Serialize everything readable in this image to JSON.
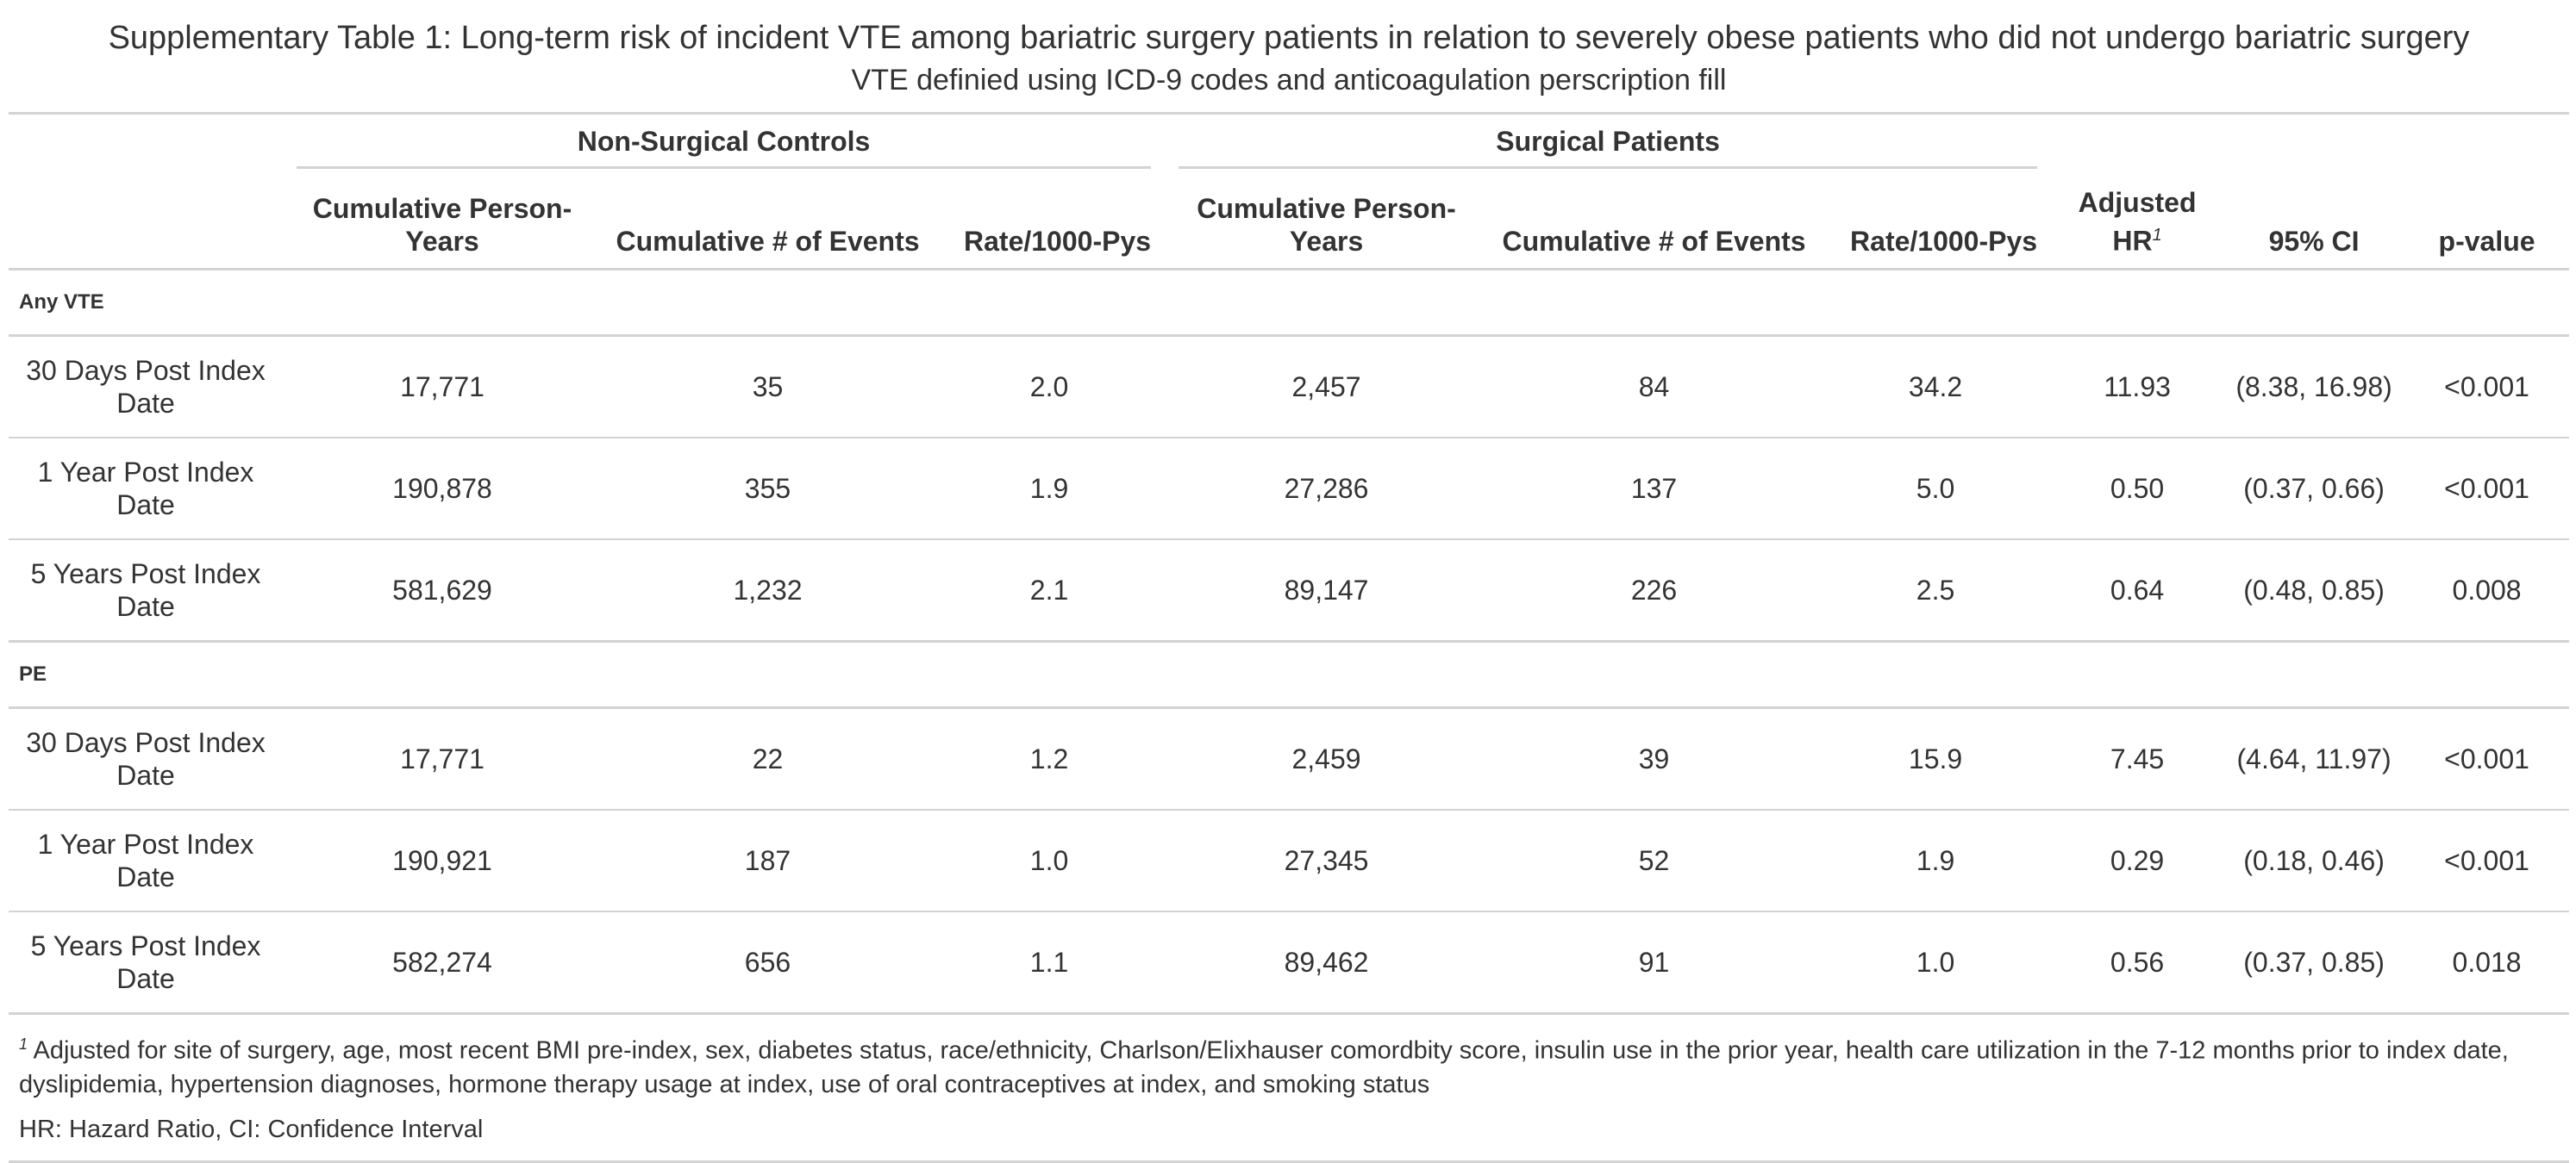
{
  "title": "Supplementary Table 1: Long-term risk of incident VTE among bariatric surgery patients in relation to severely obese patients who did not undergo bariatric surgery",
  "subtitle": "VTE definied using ICD-9 codes and anticoagulation perscription fill",
  "spanners": {
    "non_surgical": "Non-Surgical Controls",
    "surgical": "Surgical Patients"
  },
  "columns": {
    "person_years": "Cumulative Person-Years",
    "events": "Cumulative # of Events",
    "rate": "Rate/1000-Pys",
    "person_years_s": "Cumulative Person-Years",
    "events_s": "Cumulative # of Events",
    "rate_s": "Rate/1000-Pys",
    "adjusted_hr": "Adjusted HR",
    "adjusted_hr_marker": "1",
    "ci": "95% CI",
    "p_value": "p-value"
  },
  "groups": [
    {
      "label": "Any VTE",
      "rows": [
        {
          "label": "30 Days Post Index Date",
          "py_ns": "17,771",
          "ev_ns": "35",
          "rate_ns": "2.0",
          "py_s": "2,457",
          "ev_s": "84",
          "rate_s": "34.2",
          "hr": "11.93",
          "ci": "(8.38, 16.98)",
          "p": "<0.001"
        },
        {
          "label": "1 Year Post Index Date",
          "py_ns": "190,878",
          "ev_ns": "355",
          "rate_ns": "1.9",
          "py_s": "27,286",
          "ev_s": "137",
          "rate_s": "5.0",
          "hr": "0.50",
          "ci": "(0.37, 0.66)",
          "p": "<0.001"
        },
        {
          "label": "5 Years Post Index Date",
          "py_ns": "581,629",
          "ev_ns": "1,232",
          "rate_ns": "2.1",
          "py_s": "89,147",
          "ev_s": "226",
          "rate_s": "2.5",
          "hr": "0.64",
          "ci": "(0.48, 0.85)",
          "p": "0.008"
        }
      ]
    },
    {
      "label": "PE",
      "rows": [
        {
          "label": "30 Days Post Index Date",
          "py_ns": "17,771",
          "ev_ns": "22",
          "rate_ns": "1.2",
          "py_s": "2,459",
          "ev_s": "39",
          "rate_s": "15.9",
          "hr": "7.45",
          "ci": "(4.64, 11.97)",
          "p": "<0.001"
        },
        {
          "label": "1 Year Post Index Date",
          "py_ns": "190,921",
          "ev_ns": "187",
          "rate_ns": "1.0",
          "py_s": "27,345",
          "ev_s": "52",
          "rate_s": "1.9",
          "hr": "0.29",
          "ci": "(0.18, 0.46)",
          "p": "<0.001"
        },
        {
          "label": "5 Years Post Index Date",
          "py_ns": "582,274",
          "ev_ns": "656",
          "rate_ns": "1.1",
          "py_s": "89,462",
          "ev_s": "91",
          "rate_s": "1.0",
          "hr": "0.56",
          "ci": "(0.37, 0.85)",
          "p": "0.018"
        }
      ]
    }
  ],
  "footnotes": {
    "marker": "1",
    "adjusted": "Adjusted for site of surgery, age, most recent BMI pre-index, sex, diabetes status, race/ethnicity, Charlson/Elixhauser comordbity score, insulin use in the prior year, health care utilization in the 7-12 months prior to index date, dyslipidemia, hypertension diagnoses, hormone therapy usage at index, use of oral contraceptives at index, and smoking status",
    "abbreviations": "HR: Hazard Ratio, CI: Confidence Interval"
  }
}
